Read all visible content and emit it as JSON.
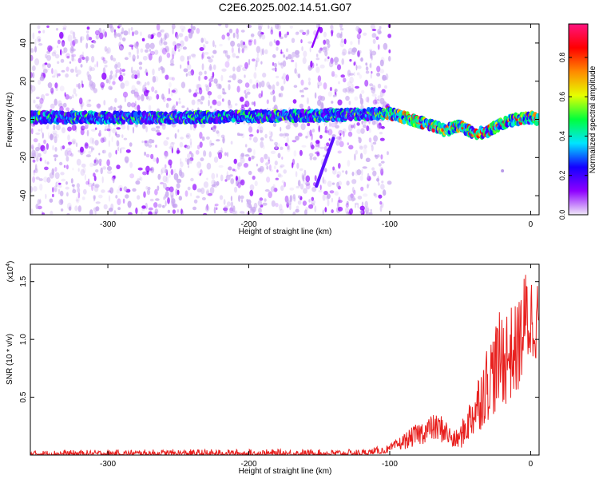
{
  "title": "C2E6.2025.002.14.51.G07",
  "chart_data": [
    {
      "type": "heatmap",
      "xlabel": "Height of straight line (km)",
      "ylabel": "Frequency (Hz)",
      "xlim": [
        -355,
        6
      ],
      "ylim": [
        -50,
        50
      ],
      "xticks": [
        -300,
        -200,
        -100,
        0
      ],
      "yticks": [
        -40,
        -20,
        0,
        20,
        40
      ],
      "colorbar": {
        "label": "Normalized spectral amplitude",
        "range": [
          0,
          0.97
        ],
        "ticks": [
          0.0,
          0.2,
          0.4,
          0.6,
          0.8
        ],
        "colormap": [
          "#f0eaf8",
          "#8e00ff",
          "#1400ff",
          "#00e5ff",
          "#00ff3c",
          "#e6ff00",
          "#ff8a00",
          "#ff0000",
          "#ff1480"
        ]
      },
      "ridge": [
        {
          "x": -355,
          "f": 1
        },
        {
          "x": -300,
          "f": 1
        },
        {
          "x": -250,
          "f": 1
        },
        {
          "x": -200,
          "f": 1.5
        },
        {
          "x": -150,
          "f": 2
        },
        {
          "x": -100,
          "f": 3
        },
        {
          "x": -90,
          "f": 1
        },
        {
          "x": -80,
          "f": -1
        },
        {
          "x": -70,
          "f": -3
        },
        {
          "x": -60,
          "f": -6
        },
        {
          "x": -55,
          "f": -4
        },
        {
          "x": -50,
          "f": -3
        },
        {
          "x": -40,
          "f": -8
        },
        {
          "x": -30,
          "f": -6
        },
        {
          "x": -20,
          "f": -2
        },
        {
          "x": -10,
          "f": 0
        },
        {
          "x": 0,
          "f": 1
        },
        {
          "x": 6,
          "f": 0
        }
      ]
    },
    {
      "type": "line",
      "xlabel": "Height of straight line (km)",
      "ylabel": "SNR (10 * v/v)",
      "yscale_label": "(x10",
      "yscale_exp": "4",
      "yscale_close": ")",
      "xlim": [
        -355,
        6
      ],
      "ylim": [
        0,
        16500
      ],
      "xticks": [
        -300,
        -200,
        -100,
        0
      ],
      "yticks": [
        0.5,
        1.0,
        1.5
      ],
      "ytick_labels": [
        "0.5",
        "1.0",
        "1.5"
      ],
      "line_color": "#e8201e",
      "envelope": [
        {
          "x": -355,
          "lo": 0,
          "hi": 400
        },
        {
          "x": -250,
          "lo": 0,
          "hi": 500
        },
        {
          "x": -120,
          "lo": 0,
          "hi": 500
        },
        {
          "x": -100,
          "lo": 200,
          "hi": 900
        },
        {
          "x": -80,
          "lo": 800,
          "hi": 2800
        },
        {
          "x": -70,
          "lo": 1200,
          "hi": 3500
        },
        {
          "x": -62,
          "lo": 1000,
          "hi": 3500
        },
        {
          "x": -55,
          "lo": 500,
          "hi": 2000
        },
        {
          "x": -50,
          "lo": 500,
          "hi": 2500
        },
        {
          "x": -40,
          "lo": 1500,
          "hi": 6000
        },
        {
          "x": -30,
          "lo": 3000,
          "hi": 10000
        },
        {
          "x": -20,
          "lo": 4000,
          "hi": 13000
        },
        {
          "x": -10,
          "lo": 5000,
          "hi": 13000
        },
        {
          "x": -3,
          "lo": 7000,
          "hi": 16500
        },
        {
          "x": 3,
          "lo": 8000,
          "hi": 15500
        },
        {
          "x": 6,
          "lo": 9000,
          "hi": 15000
        }
      ]
    }
  ]
}
